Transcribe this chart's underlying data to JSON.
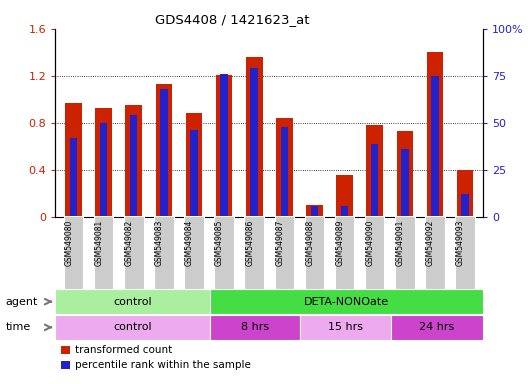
{
  "title": "GDS4408 / 1421623_at",
  "samples": [
    "GSM549080",
    "GSM549081",
    "GSM549082",
    "GSM549083",
    "GSM549084",
    "GSM549085",
    "GSM549086",
    "GSM549087",
    "GSM549088",
    "GSM549089",
    "GSM549090",
    "GSM549091",
    "GSM549092",
    "GSM549093"
  ],
  "red_values": [
    0.97,
    0.93,
    0.95,
    1.13,
    0.88,
    1.21,
    1.36,
    0.84,
    0.1,
    0.36,
    0.78,
    0.73,
    1.4,
    0.4
  ],
  "blue_percentile": [
    42,
    50,
    54,
    68,
    46,
    76,
    79,
    48,
    6,
    6,
    39,
    36,
    75,
    12
  ],
  "ylim_left": [
    0,
    1.6
  ],
  "ylim_right": [
    0,
    100
  ],
  "yticks_left": [
    0,
    0.4,
    0.8,
    1.2,
    1.6
  ],
  "yticks_right": [
    0,
    25,
    50,
    75,
    100
  ],
  "ytick_labels_left": [
    "0",
    "0.4",
    "0.8",
    "1.2",
    "1.6"
  ],
  "ytick_labels_right": [
    "0",
    "25",
    "50",
    "75",
    "100%"
  ],
  "red_color": "#CC2200",
  "blue_color": "#2222CC",
  "agent_control_color": "#AAEEA0",
  "agent_deta_color": "#44DD44",
  "time_control_color": "#EEAAEE",
  "time_8hrs_color": "#CC44CC",
  "time_15hrs_color": "#EEAAEE",
  "time_24hrs_color": "#CC44CC",
  "sample_bg_color": "#CCCCCC",
  "legend_red": "transformed count",
  "legend_blue": "percentile rank within the sample",
  "bar_width": 0.55
}
